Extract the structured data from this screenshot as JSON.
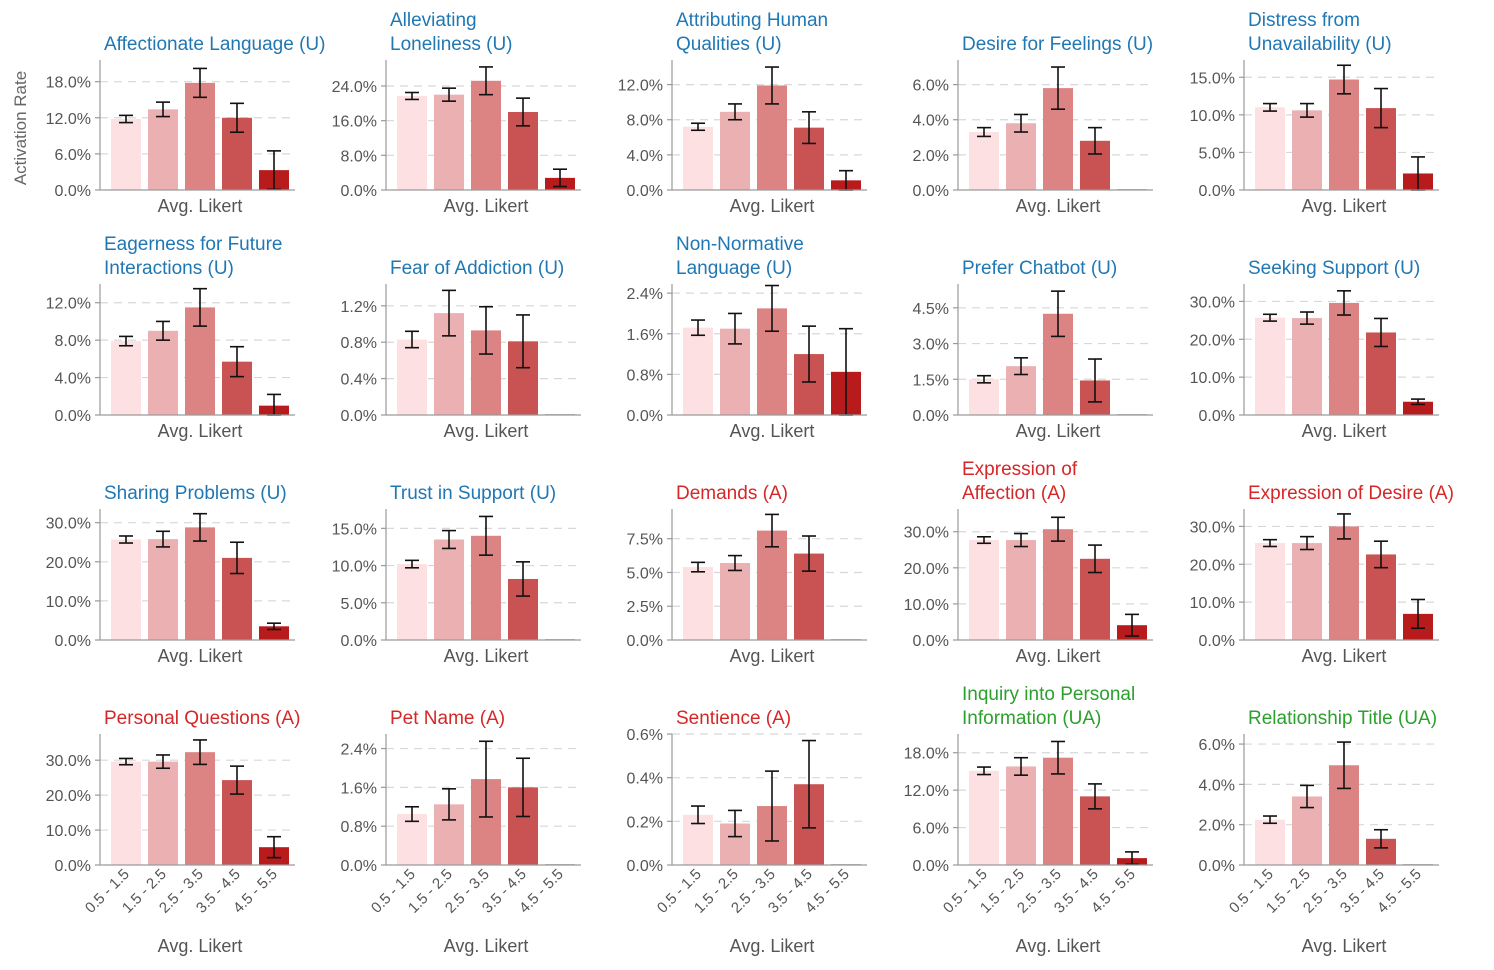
{
  "figure": {
    "ylabel": "Activation Rate",
    "xlabel": "Avg. Likert",
    "colors": {
      "bars": [
        "#fde0e1",
        "#ebb1b2",
        "#dc8384",
        "#c95253",
        "#b71b1c"
      ],
      "title_U": "#1f77b4",
      "title_A": "#d62728",
      "title_UA": "#2ca02c",
      "axis": "#9a9a9a",
      "tick_text": "#555555",
      "grid": "#d8d8d8",
      "error": "#111111"
    }
  },
  "chart_data": [
    {
      "type": "bar",
      "group": "U",
      "title": [
        "Affectionate Language (U)"
      ],
      "xlabel": "Avg. Likert",
      "categories": [
        "0.5 - 1.5",
        "1.5 - 2.5",
        "2.5 - 3.5",
        "3.5 - 4.5",
        "4.5 - 5.5"
      ],
      "values": [
        11.8,
        13.4,
        17.8,
        12.0,
        3.3
      ],
      "errors": [
        0.6,
        1.2,
        2.4,
        2.4,
        3.2
      ],
      "ylim": [
        0,
        21.6
      ],
      "yticks": [
        0,
        6,
        12,
        18
      ],
      "yticklabels": [
        "0.0%",
        "6.0%",
        "12.0%",
        "18.0%"
      ]
    },
    {
      "type": "bar",
      "group": "U",
      "title": [
        "Alleviating",
        "Loneliness (U)"
      ],
      "xlabel": "Avg. Likert",
      "categories": [
        "0.5 - 1.5",
        "1.5 - 2.5",
        "2.5 - 3.5",
        "3.5 - 4.5",
        "4.5 - 5.5"
      ],
      "values": [
        21.7,
        22.0,
        25.2,
        18.0,
        2.8
      ],
      "errors": [
        0.8,
        1.5,
        3.2,
        3.2,
        2.0
      ],
      "ylim": [
        0,
        30
      ],
      "yticks": [
        0,
        8,
        16,
        24
      ],
      "yticklabels": [
        "0.0%",
        "8.0%",
        "16.0%",
        "24.0%"
      ]
    },
    {
      "type": "bar",
      "group": "U",
      "title": [
        "Attributing Human",
        "Qualities (U)"
      ],
      "xlabel": "Avg. Likert",
      "categories": [
        "0.5 - 1.5",
        "1.5 - 2.5",
        "2.5 - 3.5",
        "3.5 - 4.5",
        "4.5 - 5.5"
      ],
      "values": [
        7.2,
        8.9,
        11.9,
        7.1,
        1.1
      ],
      "errors": [
        0.4,
        0.9,
        2.1,
        1.8,
        1.1
      ],
      "ylim": [
        0,
        14.8
      ],
      "yticks": [
        0,
        4,
        8,
        12
      ],
      "yticklabels": [
        "0.0%",
        "4.0%",
        "8.0%",
        "12.0%"
      ]
    },
    {
      "type": "bar",
      "group": "U",
      "title": [
        "Desire for Feelings (U)"
      ],
      "xlabel": "Avg. Likert",
      "categories": [
        "0.5 - 1.5",
        "1.5 - 2.5",
        "2.5 - 3.5",
        "3.5 - 4.5",
        "4.5 - 5.5"
      ],
      "values": [
        3.3,
        3.8,
        5.8,
        2.8,
        0.0
      ],
      "errors": [
        0.25,
        0.5,
        1.2,
        0.75,
        0.0
      ],
      "ylim": [
        0,
        7.4
      ],
      "yticks": [
        0,
        2,
        4,
        6
      ],
      "yticklabels": [
        "0.0%",
        "2.0%",
        "4.0%",
        "6.0%"
      ]
    },
    {
      "type": "bar",
      "group": "U",
      "title": [
        "Distress from",
        "Unavailability (U)"
      ],
      "xlabel": "Avg. Likert",
      "categories": [
        "0.5 - 1.5",
        "1.5 - 2.5",
        "2.5 - 3.5",
        "3.5 - 4.5",
        "4.5 - 5.5"
      ],
      "values": [
        11.0,
        10.6,
        14.7,
        10.9,
        2.2
      ],
      "errors": [
        0.5,
        0.9,
        1.9,
        2.6,
        2.2
      ],
      "ylim": [
        0,
        17.3
      ],
      "yticks": [
        0,
        5,
        10,
        15
      ],
      "yticklabels": [
        "0.0%",
        "5.0%",
        "10.0%",
        "15.0%"
      ]
    },
    {
      "type": "bar",
      "group": "U",
      "title": [
        "Eagerness for Future",
        "Interactions (U)"
      ],
      "xlabel": "Avg. Likert",
      "categories": [
        "0.5 - 1.5",
        "1.5 - 2.5",
        "2.5 - 3.5",
        "3.5 - 4.5",
        "4.5 - 5.5"
      ],
      "values": [
        7.9,
        9.0,
        11.5,
        5.7,
        1.0
      ],
      "errors": [
        0.5,
        1.0,
        2.0,
        1.6,
        1.2
      ],
      "ylim": [
        0,
        14.0
      ],
      "yticks": [
        0,
        4,
        8,
        12
      ],
      "yticklabels": [
        "0.0%",
        "4.0%",
        "8.0%",
        "12.0%"
      ]
    },
    {
      "type": "bar",
      "group": "U",
      "title": [
        "Fear of Addiction (U)"
      ],
      "xlabel": "Avg. Likert",
      "categories": [
        "0.5 - 1.5",
        "1.5 - 2.5",
        "2.5 - 3.5",
        "3.5 - 4.5",
        "4.5 - 5.5"
      ],
      "values": [
        0.83,
        1.12,
        0.93,
        0.81,
        0.0
      ],
      "errors": [
        0.09,
        0.25,
        0.26,
        0.29,
        0.0
      ],
      "ylim": [
        0,
        1.44
      ],
      "yticks": [
        0,
        0.4,
        0.8,
        1.2
      ],
      "yticklabels": [
        "0.0%",
        "0.4%",
        "0.8%",
        "1.2%"
      ]
    },
    {
      "type": "bar",
      "group": "U",
      "title": [
        "Non-Normative",
        "Language (U)"
      ],
      "xlabel": "Avg. Likert",
      "categories": [
        "0.5 - 1.5",
        "1.5 - 2.5",
        "2.5 - 3.5",
        "3.5 - 4.5",
        "4.5 - 5.5"
      ],
      "values": [
        1.72,
        1.7,
        2.1,
        1.2,
        0.85
      ],
      "errors": [
        0.15,
        0.3,
        0.45,
        0.55,
        0.85
      ],
      "ylim": [
        0,
        2.58
      ],
      "yticks": [
        0,
        0.8,
        1.6,
        2.4
      ],
      "yticklabels": [
        "0.0%",
        "0.8%",
        "1.6%",
        "2.4%"
      ]
    },
    {
      "type": "bar",
      "group": "U",
      "title": [
        "Prefer Chatbot (U)"
      ],
      "xlabel": "Avg. Likert",
      "categories": [
        "0.5 - 1.5",
        "1.5 - 2.5",
        "2.5 - 3.5",
        "3.5 - 4.5",
        "4.5 - 5.5"
      ],
      "values": [
        1.5,
        2.05,
        4.25,
        1.45,
        0.0
      ],
      "errors": [
        0.15,
        0.35,
        0.95,
        0.9,
        0.0
      ],
      "ylim": [
        0,
        5.5
      ],
      "yticks": [
        0,
        1.5,
        3.0,
        4.5
      ],
      "yticklabels": [
        "0.0%",
        "1.5%",
        "3.0%",
        "4.5%"
      ]
    },
    {
      "type": "bar",
      "group": "U",
      "title": [
        "Seeking Support (U)"
      ],
      "xlabel": "Avg. Likert",
      "categories": [
        "0.5 - 1.5",
        "1.5 - 2.5",
        "2.5 - 3.5",
        "3.5 - 4.5",
        "4.5 - 5.5"
      ],
      "values": [
        25.7,
        25.6,
        29.6,
        21.8,
        3.5
      ],
      "errors": [
        0.9,
        1.6,
        3.2,
        3.7,
        0.7
      ],
      "ylim": [
        0,
        34.6
      ],
      "yticks": [
        0,
        10,
        20,
        30
      ],
      "yticklabels": [
        "0.0%",
        "10.0%",
        "20.0%",
        "30.0%"
      ]
    },
    {
      "type": "bar",
      "group": "U",
      "title": [
        "Sharing Problems (U)"
      ],
      "xlabel": "Avg. Likert",
      "categories": [
        "0.5 - 1.5",
        "1.5 - 2.5",
        "2.5 - 3.5",
        "3.5 - 4.5",
        "4.5 - 5.5"
      ],
      "values": [
        25.7,
        25.8,
        28.8,
        21.0,
        3.5
      ],
      "errors": [
        0.9,
        2.0,
        3.5,
        4.0,
        0.8
      ],
      "ylim": [
        0,
        33.5
      ],
      "yticks": [
        0,
        10,
        20,
        30
      ],
      "yticklabels": [
        "0.0%",
        "10.0%",
        "20.0%",
        "30.0%"
      ]
    },
    {
      "type": "bar",
      "group": "U",
      "title": [
        "Trust in Support (U)"
      ],
      "xlabel": "Avg. Likert",
      "categories": [
        "0.5 - 1.5",
        "1.5 - 2.5",
        "2.5 - 3.5",
        "3.5 - 4.5",
        "4.5 - 5.5"
      ],
      "values": [
        10.2,
        13.5,
        14.0,
        8.2,
        0.0
      ],
      "errors": [
        0.5,
        1.2,
        2.6,
        2.3,
        0.0
      ],
      "ylim": [
        0,
        17.6
      ],
      "yticks": [
        0,
        5,
        10,
        15
      ],
      "yticklabels": [
        "0.0%",
        "5.0%",
        "10.0%",
        "15.0%"
      ]
    },
    {
      "type": "bar",
      "group": "A",
      "title": [
        "Demands (A)"
      ],
      "xlabel": "Avg. Likert",
      "categories": [
        "0.5 - 1.5",
        "1.5 - 2.5",
        "2.5 - 3.5",
        "3.5 - 4.5",
        "4.5 - 5.5"
      ],
      "values": [
        5.4,
        5.7,
        8.1,
        6.4,
        0.0
      ],
      "errors": [
        0.35,
        0.55,
        1.2,
        1.3,
        0.0
      ],
      "ylim": [
        0,
        9.7
      ],
      "yticks": [
        0,
        2.5,
        5.0,
        7.5
      ],
      "yticklabels": [
        "0.0%",
        "2.5%",
        "5.0%",
        "7.5%"
      ]
    },
    {
      "type": "bar",
      "group": "A",
      "title": [
        "Expression of",
        "Affection (A)"
      ],
      "xlabel": "Avg. Likert",
      "categories": [
        "0.5 - 1.5",
        "1.5 - 2.5",
        "2.5 - 3.5",
        "3.5 - 4.5",
        "4.5 - 5.5"
      ],
      "values": [
        27.7,
        27.7,
        30.7,
        22.5,
        4.1
      ],
      "errors": [
        0.9,
        1.8,
        3.3,
        3.8,
        3.0
      ],
      "ylim": [
        0,
        36.3
      ],
      "yticks": [
        0,
        10,
        20,
        30
      ],
      "yticklabels": [
        "0.0%",
        "10.0%",
        "20.0%",
        "30.0%"
      ]
    },
    {
      "type": "bar",
      "group": "A",
      "title": [
        "Expression of Desire (A)"
      ],
      "xlabel": "Avg. Likert",
      "categories": [
        "0.5 - 1.5",
        "1.5 - 2.5",
        "2.5 - 3.5",
        "3.5 - 4.5",
        "4.5 - 5.5"
      ],
      "values": [
        25.6,
        25.6,
        30.0,
        22.6,
        6.9
      ],
      "errors": [
        0.9,
        1.7,
        3.3,
        3.5,
        3.8
      ],
      "ylim": [
        0,
        34.6
      ],
      "yticks": [
        0,
        10,
        20,
        30
      ],
      "yticklabels": [
        "0.0%",
        "10.0%",
        "20.0%",
        "30.0%"
      ]
    },
    {
      "type": "bar",
      "group": "A",
      "title": [
        "Personal Questions (A)"
      ],
      "xlabel": "Avg. Likert",
      "categories": [
        "0.5 - 1.5",
        "1.5 - 2.5",
        "2.5 - 3.5",
        "3.5 - 4.5",
        "4.5 - 5.5"
      ],
      "values": [
        29.6,
        29.6,
        32.3,
        24.3,
        5.1
      ],
      "errors": [
        0.9,
        1.9,
        3.5,
        4.0,
        3.0
      ],
      "ylim": [
        0,
        37.5
      ],
      "yticks": [
        0,
        10,
        20,
        30
      ],
      "yticklabels": [
        "0.0%",
        "10.0%",
        "20.0%",
        "30.0%"
      ]
    },
    {
      "type": "bar",
      "group": "A",
      "title": [
        "Pet Name (A)"
      ],
      "xlabel": "Avg. Likert",
      "categories": [
        "0.5 - 1.5",
        "1.5 - 2.5",
        "2.5 - 3.5",
        "3.5 - 4.5",
        "4.5 - 5.5"
      ],
      "values": [
        1.05,
        1.25,
        1.77,
        1.6,
        0.0
      ],
      "errors": [
        0.15,
        0.32,
        0.78,
        0.6,
        0.0
      ],
      "ylim": [
        0,
        2.7
      ],
      "yticks": [
        0,
        0.8,
        1.6,
        2.4
      ],
      "yticklabels": [
        "0.0%",
        "0.8%",
        "1.6%",
        "2.4%"
      ]
    },
    {
      "type": "bar",
      "group": "A",
      "title": [
        "Sentience (A)"
      ],
      "xlabel": "Avg. Likert",
      "categories": [
        "0.5 - 1.5",
        "1.5 - 2.5",
        "2.5 - 3.5",
        "3.5 - 4.5",
        "4.5 - 5.5"
      ],
      "values": [
        0.23,
        0.19,
        0.27,
        0.37,
        0.0
      ],
      "errors": [
        0.04,
        0.06,
        0.16,
        0.2,
        0.0
      ],
      "ylim": [
        0,
        0.6
      ],
      "yticks": [
        0,
        0.2,
        0.4,
        0.6
      ],
      "yticklabels": [
        "0.0%",
        "0.2%",
        "0.4%",
        "0.6%"
      ]
    },
    {
      "type": "bar",
      "group": "UA",
      "title": [
        "Inquiry into Personal",
        "Information (UA)"
      ],
      "xlabel": "Avg. Likert",
      "categories": [
        "0.5 - 1.5",
        "1.5 - 2.5",
        "2.5 - 3.5",
        "3.5 - 4.5",
        "4.5 - 5.5"
      ],
      "values": [
        15.1,
        15.8,
        17.2,
        11.0,
        1.1
      ],
      "errors": [
        0.6,
        1.4,
        2.6,
        2.0,
        1.0
      ],
      "ylim": [
        0,
        21.0
      ],
      "yticks": [
        0,
        6,
        12,
        18
      ],
      "yticklabels": [
        "0.0%",
        "6.0%",
        "12.0%",
        "18.0%"
      ]
    },
    {
      "type": "bar",
      "group": "UA",
      "title": [
        "Relationship Title (UA)"
      ],
      "xlabel": "Avg. Likert",
      "categories": [
        "0.5 - 1.5",
        "1.5 - 2.5",
        "2.5 - 3.5",
        "3.5 - 4.5",
        "4.5 - 5.5"
      ],
      "values": [
        2.25,
        3.4,
        4.95,
        1.3,
        0.0
      ],
      "errors": [
        0.18,
        0.55,
        1.15,
        0.45,
        0.0
      ],
      "ylim": [
        0,
        6.5
      ],
      "yticks": [
        0,
        2,
        4,
        6
      ],
      "yticklabels": [
        "0.0%",
        "2.0%",
        "4.0%",
        "6.0%"
      ]
    }
  ]
}
